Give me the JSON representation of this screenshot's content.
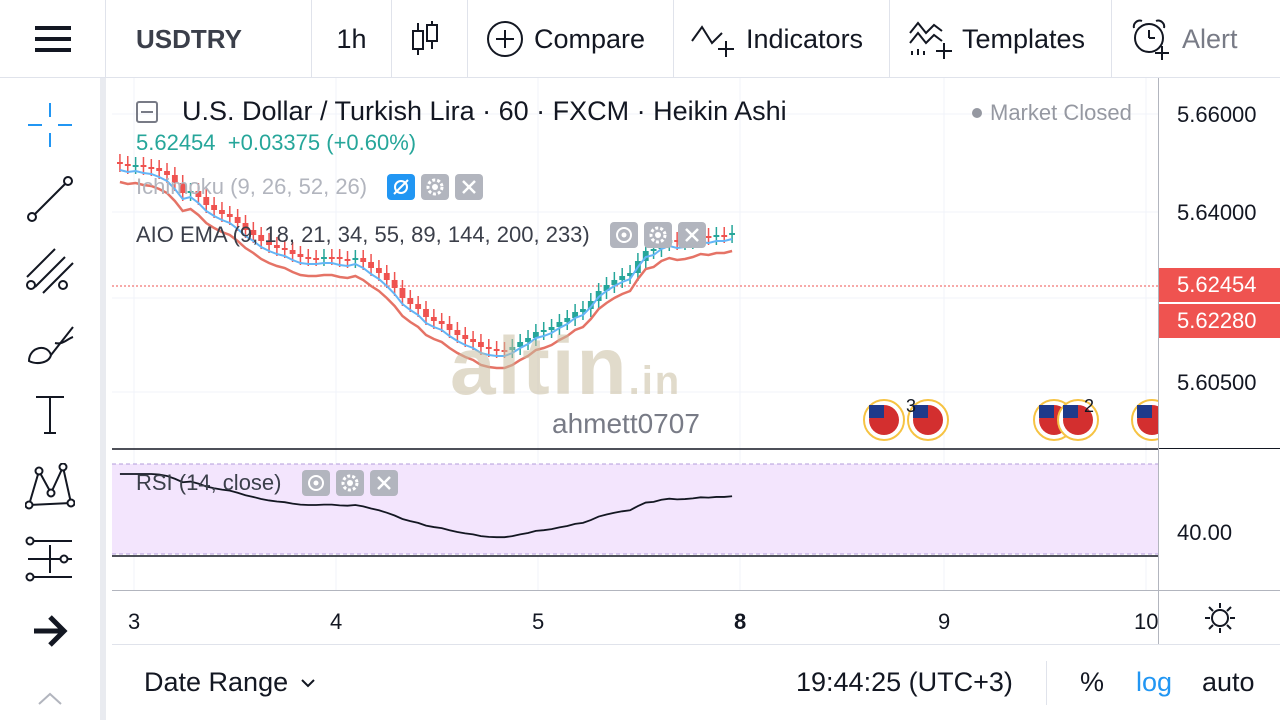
{
  "toolbar": {
    "menu_icon": "hamburger-icon",
    "symbol": "USDTRY",
    "interval": "1h",
    "chart_type_icon": "candles-icon",
    "compare_label": "Compare",
    "indicators_label": "Indicators",
    "templates_label": "Templates",
    "alert_label": "Alert"
  },
  "left_tools": [
    "crosshair-icon",
    "trend-line-icon",
    "fib-tools-icon",
    "brush-icon",
    "text-icon",
    "pattern-icon",
    "measure-icon",
    "arrow-right-icon"
  ],
  "legend": {
    "title": "U.S. Dollar / Turkish Lira · 60 · FXCM · Heikin Ashi",
    "price": "5.62454",
    "change": "+0.03375 (+0.60%)",
    "market_status": "Market Closed",
    "indicators": [
      {
        "name": "Ichimoku (9, 26, 52, 26)"
      },
      {
        "name": "AIO EMA (9, 18, 21, 34, 55, 89, 144, 200, 233)"
      }
    ],
    "rsi": "RSI (14, close)"
  },
  "watermark": {
    "brand": "altin",
    "suffix": ".in",
    "author": "ahmett0707"
  },
  "price_axis": {
    "labels": [
      "5.66000",
      "5.64000",
      "5.60500",
      "40.00"
    ],
    "current_price": "5.62454",
    "ema_price": "5.62280",
    "colors": {
      "tag": "#ef5350"
    }
  },
  "events": {
    "group1_count": "3",
    "group2_count": "2"
  },
  "time_axis": {
    "labels": [
      "3",
      "4",
      "5",
      "8",
      "9",
      "10"
    ]
  },
  "bottom": {
    "date_range": "Date Range",
    "clock": "19:44:25 (UTC+3)",
    "percent": "%",
    "log": "log",
    "auto": "auto"
  },
  "colors": {
    "up": "#26a69a",
    "down": "#ef5350",
    "ema_fast": "#64b5f6",
    "ema_slow": "#e57366",
    "rsi_bg": "#f3e5fd",
    "accent": "#2196f3"
  }
}
